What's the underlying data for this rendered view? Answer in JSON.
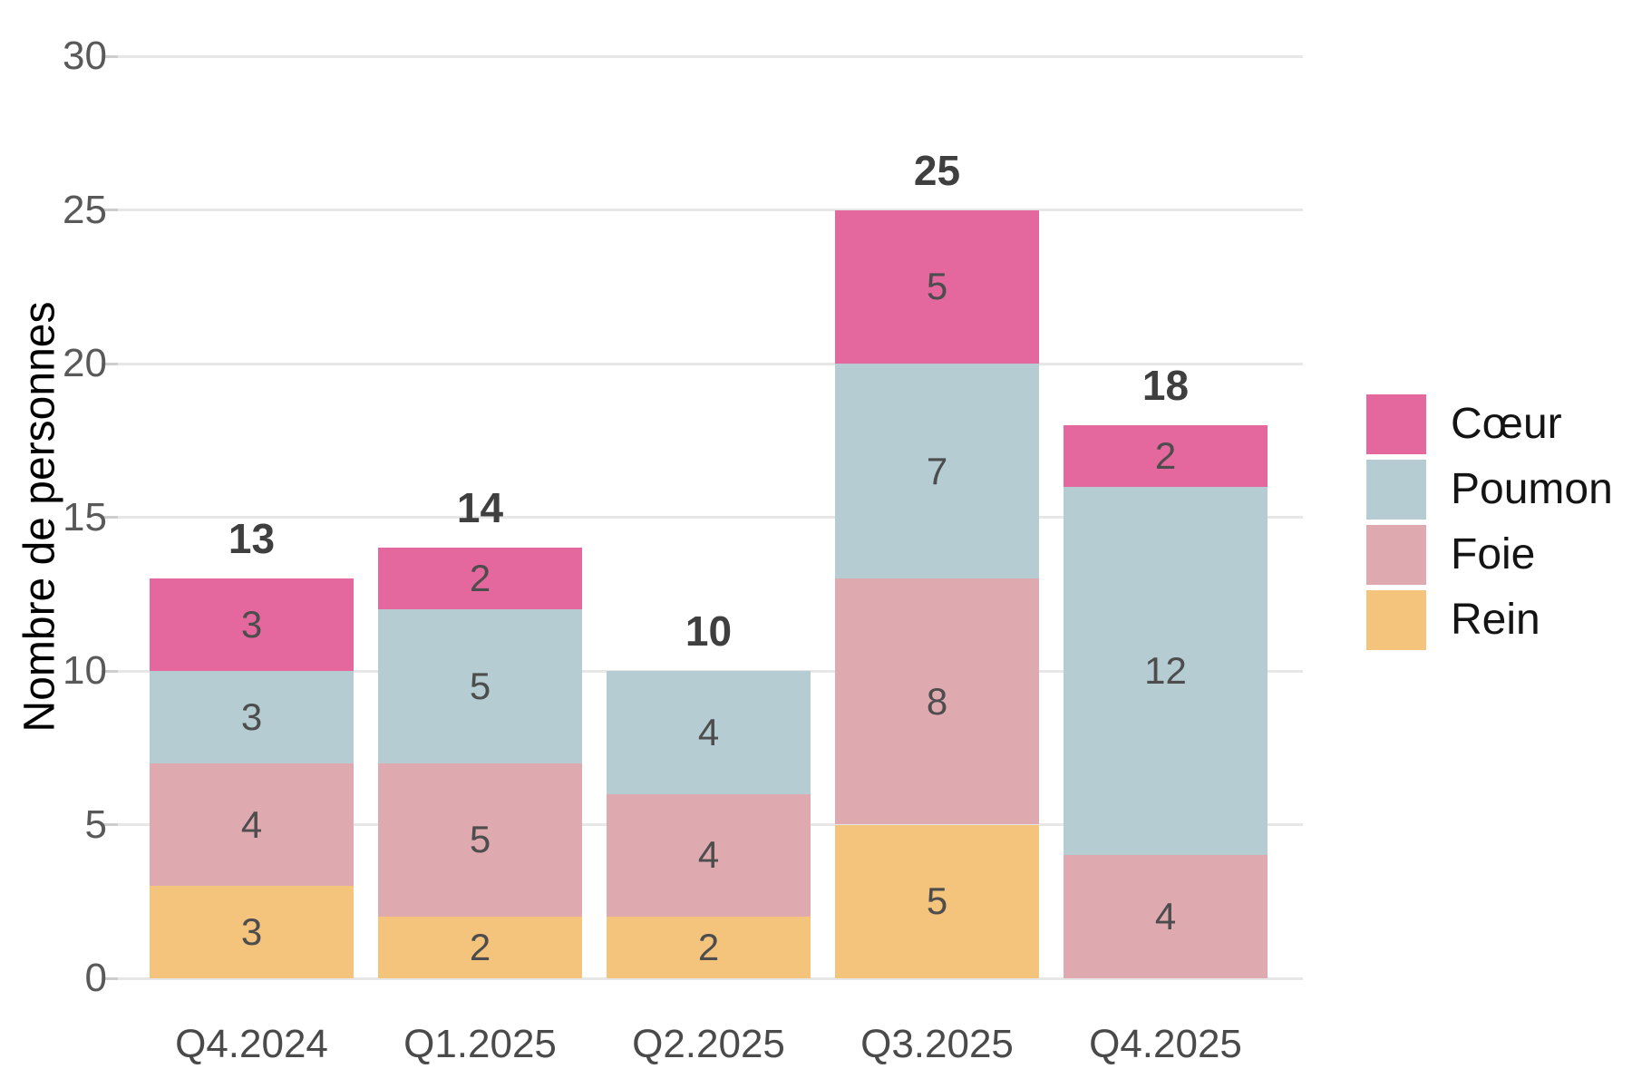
{
  "chart_data": {
    "type": "bar",
    "stacked": true,
    "title": "",
    "xlabel": "",
    "ylabel": "Nombre de personnes",
    "categories": [
      "Q4.2024",
      "Q1.2025",
      "Q2.2025",
      "Q3.2025",
      "Q4.2025"
    ],
    "series": [
      {
        "name": "Rein",
        "color": "#F4C37C",
        "values": [
          3,
          2,
          2,
          5,
          0
        ]
      },
      {
        "name": "Foie",
        "color": "#DFA9B0",
        "values": [
          4,
          5,
          4,
          8,
          4
        ]
      },
      {
        "name": "Poumon",
        "color": "#B4CCD2",
        "values": [
          3,
          5,
          4,
          7,
          12
        ]
      },
      {
        "name": "Cœur",
        "color": "#E4679D",
        "values": [
          3,
          2,
          0,
          5,
          2
        ]
      }
    ],
    "totals": [
      13,
      14,
      10,
      25,
      18
    ],
    "ylim": [
      0,
      30
    ],
    "yticks": [
      0,
      5,
      10,
      15,
      20,
      25,
      30
    ],
    "grid": "horizontal",
    "legend_position": "right"
  },
  "legend": {
    "items": [
      {
        "label": "Cœur",
        "color": "#E4679D"
      },
      {
        "label": "Poumon",
        "color": "#B4CCD2"
      },
      {
        "label": "Foie",
        "color": "#DFA9B0"
      },
      {
        "label": "Rein",
        "color": "#F4C37C"
      }
    ]
  }
}
